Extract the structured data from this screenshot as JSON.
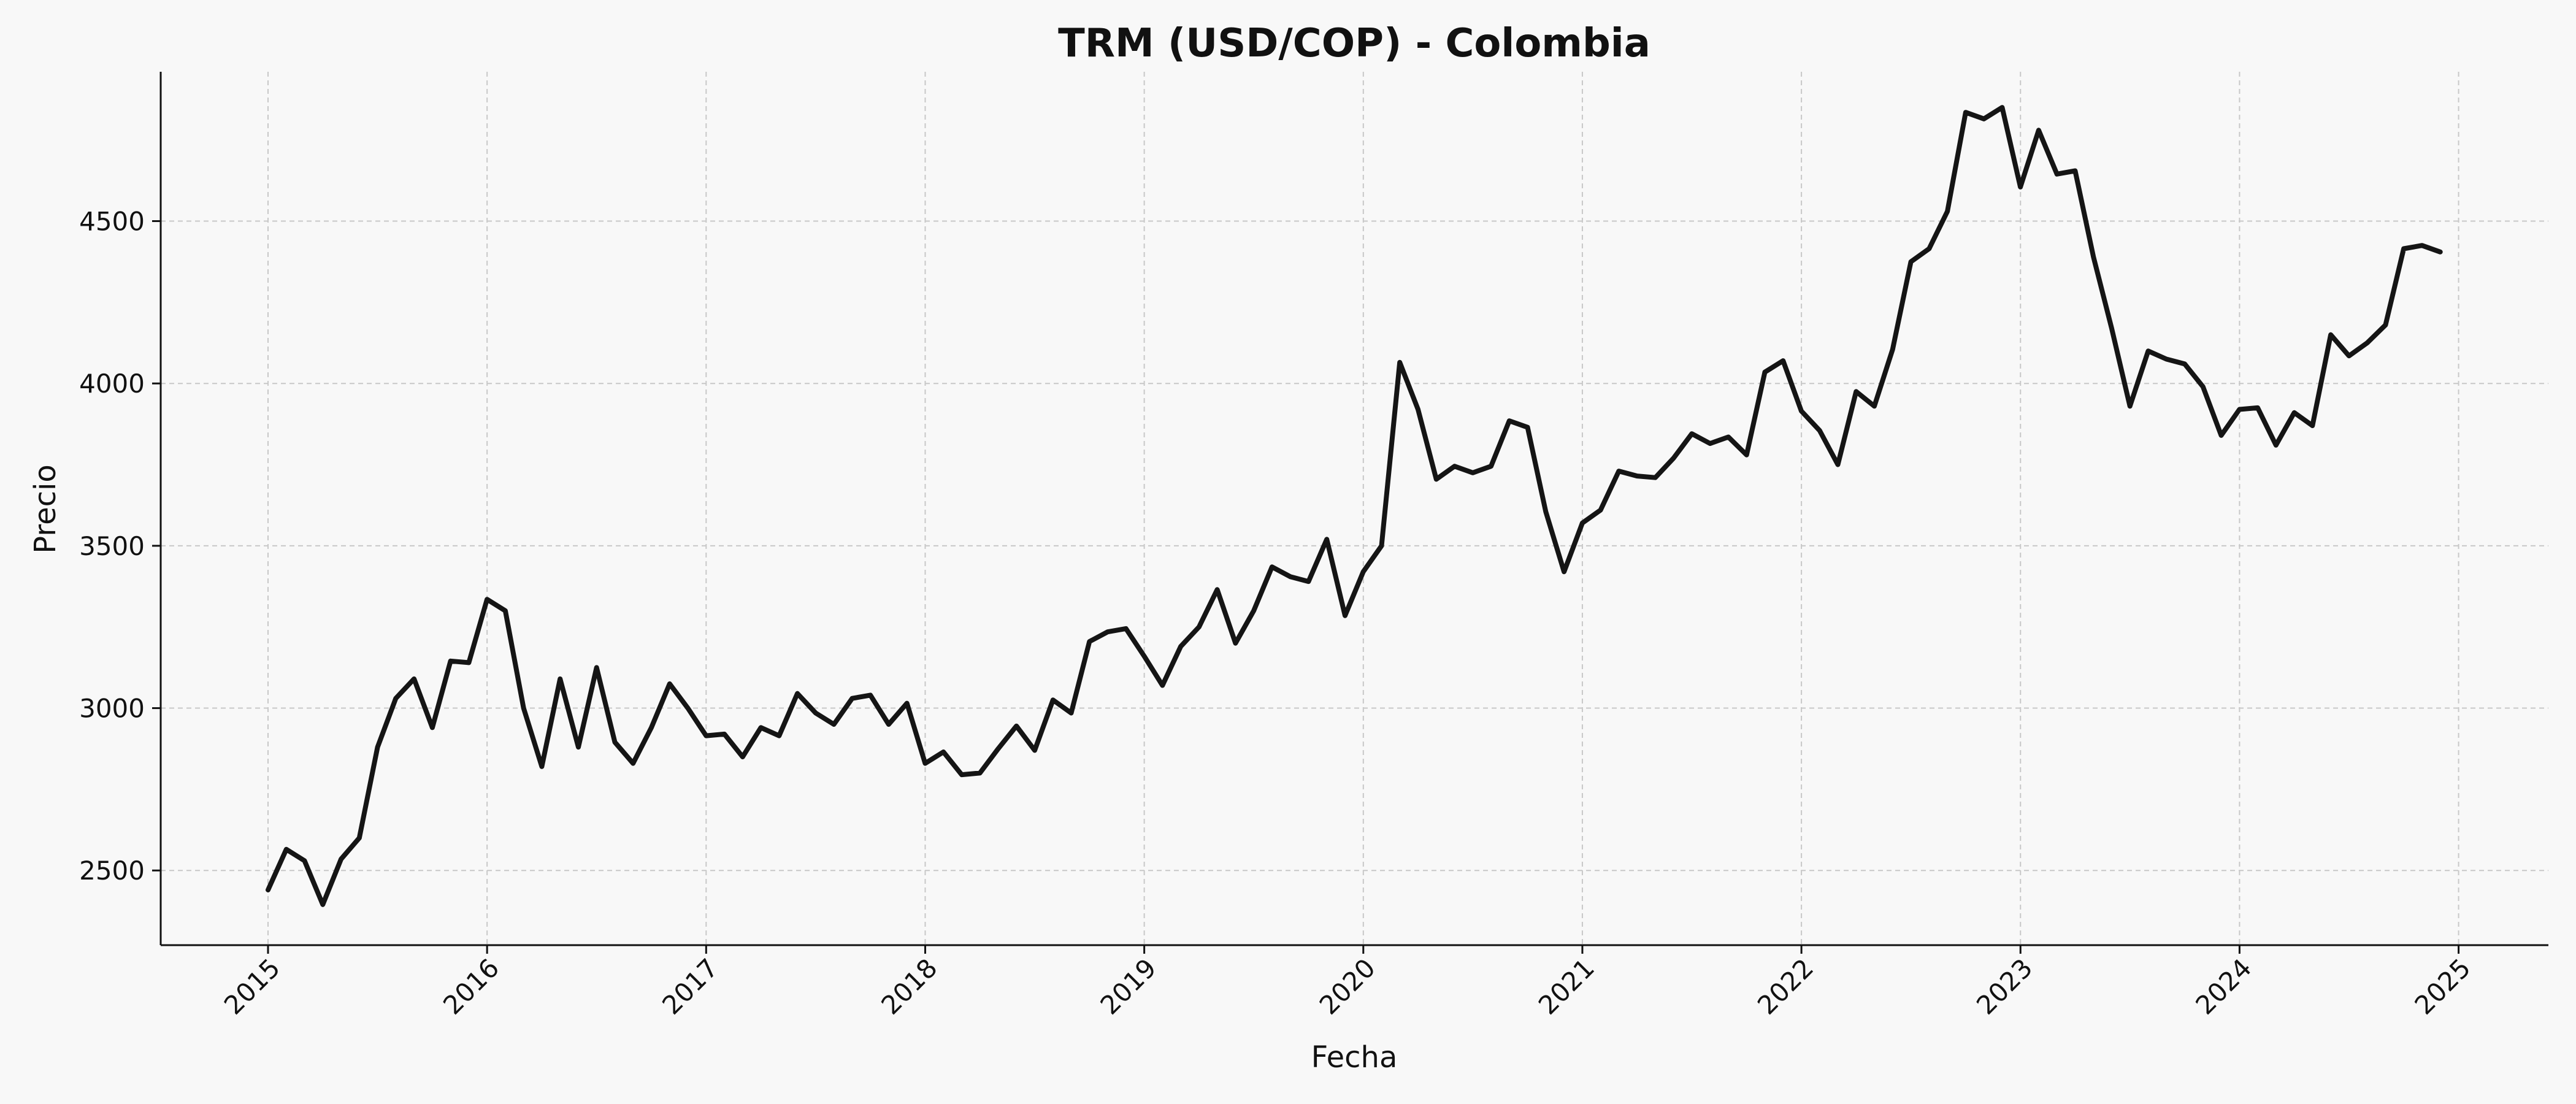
{
  "chart_data": {
    "type": "line",
    "title": "TRM (USD/COP) - Colombia",
    "xlabel": "Fecha",
    "ylabel": "Precio",
    "xlim": [
      2014.51,
      2025.41
    ],
    "ylim": [
      2270,
      4960
    ],
    "grid": true,
    "legend": "none",
    "colors": {
      "background": "#f8f8f8",
      "line": "#151515",
      "grid": "#c8c8c8"
    },
    "x_ticks": [
      {
        "value": 2015,
        "label": "2015"
      },
      {
        "value": 2016,
        "label": "2016"
      },
      {
        "value": 2017,
        "label": "2017"
      },
      {
        "value": 2018,
        "label": "2018"
      },
      {
        "value": 2019,
        "label": "2019"
      },
      {
        "value": 2020,
        "label": "2020"
      },
      {
        "value": 2021,
        "label": "2021"
      },
      {
        "value": 2022,
        "label": "2022"
      },
      {
        "value": 2023,
        "label": "2023"
      },
      {
        "value": 2024,
        "label": "2024"
      },
      {
        "value": 2025,
        "label": "2025"
      }
    ],
    "y_ticks": [
      {
        "value": 2500,
        "label": "2500"
      },
      {
        "value": 3000,
        "label": "3000"
      },
      {
        "value": 3500,
        "label": "3500"
      },
      {
        "value": 4000,
        "label": "4000"
      },
      {
        "value": 4500,
        "label": "4500"
      }
    ],
    "x_start": 2015,
    "x_step": 0.08333,
    "series": [
      {
        "values": [
          2440,
          2565,
          2530,
          2395,
          2535,
          2600,
          2880,
          3030,
          3090,
          2940,
          3145,
          3140,
          3335,
          3300,
          3000,
          2820,
          3090,
          2880,
          3125,
          2895,
          2830,
          2940,
          3075,
          3000,
          2915,
          2920,
          2850,
          2940,
          2915,
          3045,
          2985,
          2950,
          3030,
          3040,
          2950,
          3015,
          2830,
          2865,
          2795,
          2800,
          2875,
          2945,
          2870,
          3025,
          2985,
          3205,
          3235,
          3245,
          3160,
          3070,
          3190,
          3250,
          3365,
          3200,
          3300,
          3435,
          3405,
          3390,
          3520,
          3285,
          3420,
          3500,
          4065,
          3920,
          3705,
          3745,
          3725,
          3745,
          3885,
          3865,
          3605,
          3420,
          3570,
          3610,
          3730,
          3715,
          3710,
          3770,
          3845,
          3815,
          3835,
          3780,
          4035,
          4070,
          3915,
          3855,
          3750,
          3975,
          3930,
          4105,
          4375,
          4415,
          4530,
          4835,
          4815,
          4850,
          4605,
          4780,
          4645,
          4655,
          4390,
          4170,
          3930,
          4100,
          4075,
          4060,
          3990,
          3840,
          3920,
          3925,
          3810,
          3910,
          3870,
          4150,
          4085,
          4125,
          4180,
          4415,
          4425,
          4405
        ]
      }
    ]
  }
}
